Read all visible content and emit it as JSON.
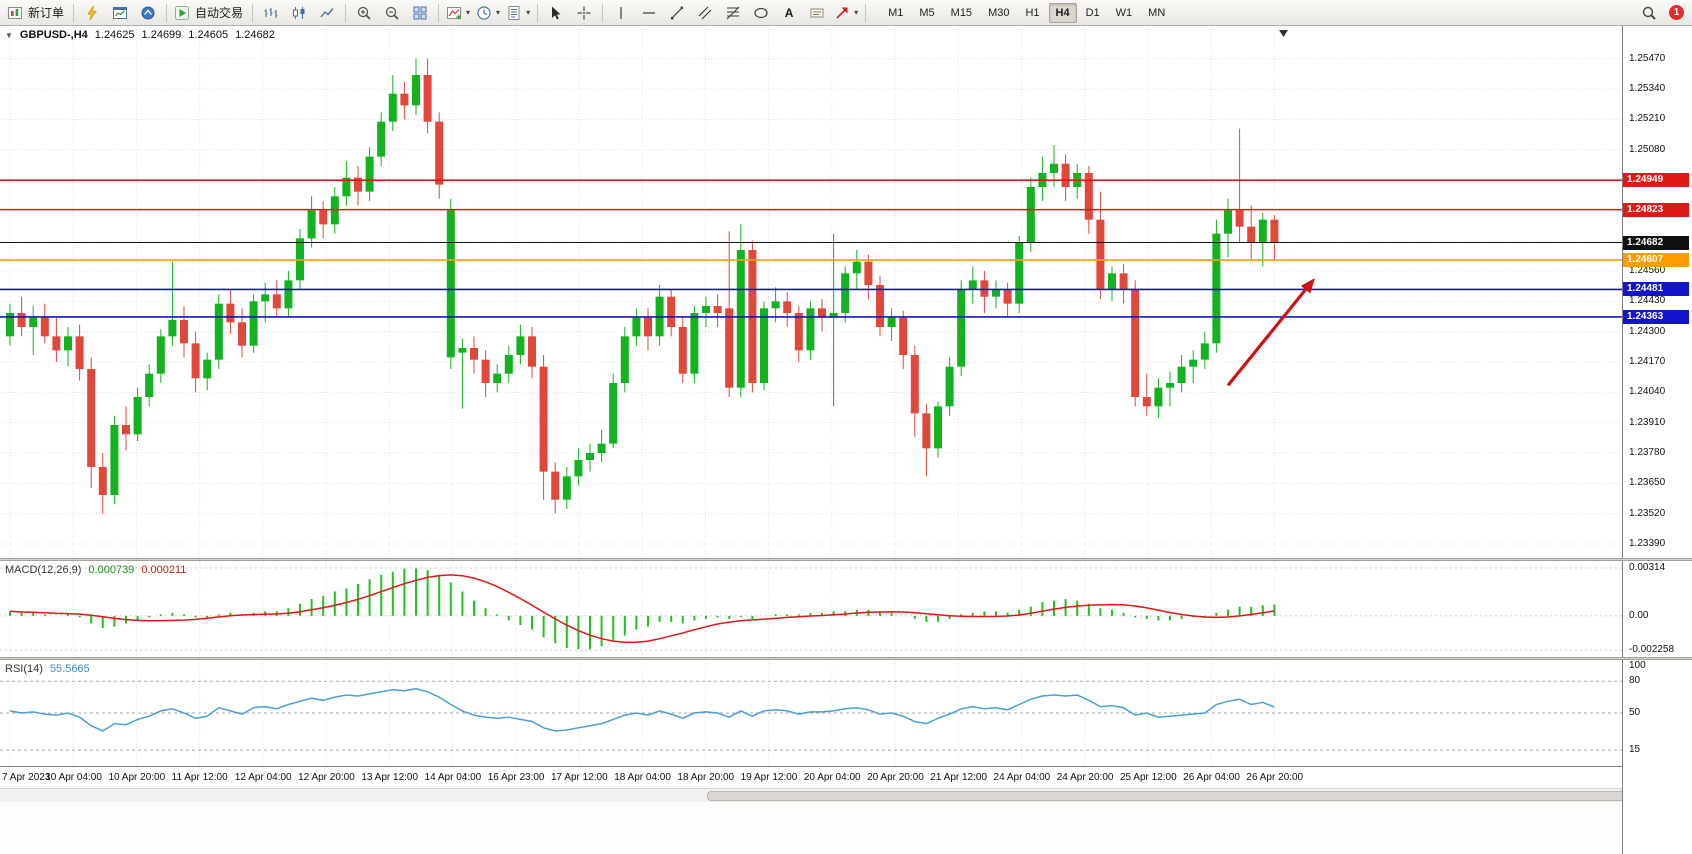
{
  "toolbar": {
    "groups": [
      [
        {
          "name": "new-order-button",
          "icon": "new-order",
          "label": "新订单"
        }
      ],
      [
        {
          "name": "quick-trade-button",
          "icon": "lightning"
        },
        {
          "name": "chart-window-button",
          "icon": "chart-window"
        },
        {
          "name": "quotes-button",
          "icon": "quotes"
        }
      ],
      [
        {
          "name": "auto-trading-button",
          "icon": "auto-trading",
          "label": "自动交易"
        }
      ],
      [
        {
          "name": "bar-chart-button",
          "icon": "bars-chart"
        },
        {
          "name": "candle-chart-button",
          "icon": "candles-chart"
        },
        {
          "name": "line-chart-button",
          "icon": "line-chart"
        }
      ],
      [
        {
          "name": "zoom-in-button",
          "icon": "zoom-in"
        },
        {
          "name": "zoom-out-button",
          "icon": "zoom-out"
        },
        {
          "name": "tile-windows-button",
          "icon": "tile-windows"
        }
      ],
      [
        {
          "name": "indicators-button",
          "icon": "indicators",
          "caret": true
        },
        {
          "name": "periods-button",
          "icon": "clock",
          "caret": true
        },
        {
          "name": "templates-button",
          "icon": "template",
          "caret": true
        }
      ],
      [
        {
          "name": "cursor-button",
          "icon": "cursor"
        },
        {
          "name": "crosshair-button",
          "icon": "crosshair"
        }
      ],
      [
        {
          "name": "vertical-line-button",
          "icon": "vline"
        },
        {
          "name": "horizontal-line-button",
          "icon": "hline"
        },
        {
          "name": "trendline-button",
          "icon": "trendline"
        },
        {
          "name": "channel-button",
          "icon": "channel"
        },
        {
          "name": "fibonacci-button",
          "icon": "fibonacci"
        },
        {
          "name": "shapes-button",
          "icon": "shapes"
        },
        {
          "name": "text-tool-button",
          "label": "A"
        },
        {
          "name": "label-tool-button",
          "icon": "label"
        },
        {
          "name": "arrows-button",
          "icon": "arrow-tools",
          "caret": true
        }
      ]
    ],
    "timeframes": [
      "M1",
      "M5",
      "M15",
      "M30",
      "H1",
      "H4",
      "D1",
      "W1",
      "MN"
    ],
    "active_timeframe": "H4",
    "right": {
      "notification_count": "1"
    }
  },
  "colors": {
    "up": "#12b31e",
    "down": "#e0483c",
    "grid": "#e3e3e3",
    "arrow": "#cc1212",
    "macd_hist": "#22c122",
    "macd_signal": "#e81414",
    "rsi": "#4a9fd8"
  },
  "chart_data": {
    "type": "candlestick",
    "symbol_label": "GBPUSD-,H4",
    "open": "1.24625",
    "high": "1.24699",
    "low": "1.24605",
    "close": "1.24682",
    "price_min": 1.2333,
    "price_max": 1.2561,
    "price_axis_ticks": [
      "1.25470",
      "1.25340",
      "1.25210",
      "1.25080",
      "1.24950",
      "1.24820",
      "1.24690",
      "1.24560",
      "1.24430",
      "1.24300",
      "1.24170",
      "1.24040",
      "1.23910",
      "1.23780",
      "1.23650",
      "1.23520",
      "1.23390"
    ],
    "price_lines": [
      {
        "price": 1.24949,
        "label": "1.24949",
        "color": "#e21717"
      },
      {
        "price": 1.24823,
        "label": "1.24823",
        "color": "#e21717"
      },
      {
        "price": 1.24682,
        "label": "1.24682",
        "color": "#101010"
      },
      {
        "price": 1.24607,
        "label": "1.24607",
        "color": "#ff9d00"
      },
      {
        "price": 1.24481,
        "label": "1.24481",
        "color": "#1414cc"
      },
      {
        "price": 1.24363,
        "label": "1.24363",
        "color": "#1414cc"
      }
    ],
    "arrow": {
      "from_index": 105,
      "from_price": 1.2407,
      "to_index": 112.5,
      "to_price": 1.2453
    },
    "candles": [
      [
        1.2428,
        1.2442,
        1.2424,
        1.2438
      ],
      [
        1.2438,
        1.2445,
        1.2428,
        1.2432
      ],
      [
        1.2432,
        1.2441,
        1.242,
        1.2436
      ],
      [
        1.2436,
        1.2442,
        1.2425,
        1.2428
      ],
      [
        1.2428,
        1.2436,
        1.2417,
        1.2422
      ],
      [
        1.2422,
        1.2432,
        1.2415,
        1.2428
      ],
      [
        1.2428,
        1.2433,
        1.2409,
        1.2414
      ],
      [
        1.2414,
        1.2419,
        1.2363,
        1.2372
      ],
      [
        1.2372,
        1.2378,
        1.2352,
        1.236
      ],
      [
        1.236,
        1.2394,
        1.2356,
        1.239
      ],
      [
        1.239,
        1.2398,
        1.2379,
        1.2386
      ],
      [
        1.2386,
        1.2406,
        1.2383,
        1.2402
      ],
      [
        1.2402,
        1.2416,
        1.2398,
        1.2412
      ],
      [
        1.2412,
        1.2431,
        1.2408,
        1.2428
      ],
      [
        1.2428,
        1.246,
        1.2424,
        1.2435
      ],
      [
        1.2435,
        1.2441,
        1.2419,
        1.2425
      ],
      [
        1.2425,
        1.243,
        1.2404,
        1.241
      ],
      [
        1.241,
        1.2421,
        1.2405,
        1.2418
      ],
      [
        1.2418,
        1.2446,
        1.2414,
        1.2442
      ],
      [
        1.2442,
        1.2448,
        1.2429,
        1.2434
      ],
      [
        1.2434,
        1.244,
        1.2419,
        1.2424
      ],
      [
        1.2424,
        1.2446,
        1.2421,
        1.2443
      ],
      [
        1.2443,
        1.2451,
        1.2434,
        1.2446
      ],
      [
        1.2446,
        1.2452,
        1.2436,
        1.244
      ],
      [
        1.244,
        1.2456,
        1.2436,
        1.2452
      ],
      [
        1.2452,
        1.2474,
        1.2448,
        1.247
      ],
      [
        1.247,
        1.2488,
        1.2466,
        1.2482
      ],
      [
        1.2482,
        1.2486,
        1.247,
        1.2476
      ],
      [
        1.2476,
        1.2492,
        1.2472,
        1.2488
      ],
      [
        1.2488,
        1.2503,
        1.2484,
        1.2496
      ],
      [
        1.2496,
        1.2501,
        1.2484,
        1.249
      ],
      [
        1.249,
        1.2509,
        1.2486,
        1.2505
      ],
      [
        1.2505,
        1.2524,
        1.2501,
        1.252
      ],
      [
        1.252,
        1.254,
        1.2516,
        1.2532
      ],
      [
        1.2532,
        1.2537,
        1.2521,
        1.2527
      ],
      [
        1.2527,
        1.2547,
        1.2523,
        1.254
      ],
      [
        1.254,
        1.2547,
        1.2515,
        1.252
      ],
      [
        1.252,
        1.2524,
        1.2487,
        1.2493
      ],
      [
        1.2419,
        1.2487,
        1.2414,
        1.2482
      ],
      [
        1.2421,
        1.2427,
        1.2397,
        1.2423
      ],
      [
        1.2423,
        1.2428,
        1.2412,
        1.2418
      ],
      [
        1.2418,
        1.2422,
        1.2402,
        1.2408
      ],
      [
        1.2408,
        1.2416,
        1.2404,
        1.2412
      ],
      [
        1.2412,
        1.2424,
        1.2408,
        1.242
      ],
      [
        1.242,
        1.2433,
        1.2416,
        1.2428
      ],
      [
        1.2428,
        1.2432,
        1.241,
        1.2415
      ],
      [
        1.2415,
        1.242,
        1.2358,
        1.237
      ],
      [
        1.237,
        1.2374,
        1.2352,
        1.2358
      ],
      [
        1.2358,
        1.2372,
        1.2354,
        1.2368
      ],
      [
        1.2368,
        1.238,
        1.2364,
        1.2375
      ],
      [
        1.2375,
        1.2382,
        1.237,
        1.2378
      ],
      [
        1.2378,
        1.2388,
        1.2374,
        1.2382
      ],
      [
        1.2382,
        1.2412,
        1.238,
        1.2408
      ],
      [
        1.2408,
        1.2432,
        1.2404,
        1.2428
      ],
      [
        1.2428,
        1.244,
        1.2424,
        1.2436
      ],
      [
        1.2436,
        1.244,
        1.2422,
        1.2428
      ],
      [
        1.2428,
        1.245,
        1.2424,
        1.2445
      ],
      [
        1.2445,
        1.2448,
        1.2428,
        1.2432
      ],
      [
        1.2432,
        1.2436,
        1.2408,
        1.2412
      ],
      [
        1.2412,
        1.2441,
        1.2408,
        1.2438
      ],
      [
        1.2438,
        1.2445,
        1.2432,
        1.2441
      ],
      [
        1.2441,
        1.2446,
        1.2432,
        1.2438
      ],
      [
        1.244,
        1.2473,
        1.2402,
        1.2406
      ],
      [
        1.2406,
        1.2476,
        1.2402,
        1.2465
      ],
      [
        1.2465,
        1.2469,
        1.2404,
        1.2408
      ],
      [
        1.2408,
        1.2443,
        1.2405,
        1.244
      ],
      [
        1.244,
        1.2449,
        1.2434,
        1.2443
      ],
      [
        1.2443,
        1.2447,
        1.2432,
        1.2438
      ],
      [
        1.2438,
        1.2441,
        1.2417,
        1.2422
      ],
      [
        1.2422,
        1.2443,
        1.2418,
        1.244
      ],
      [
        1.244,
        1.2444,
        1.243,
        1.2436
      ],
      [
        1.2436,
        1.2472,
        1.2398,
        1.2438
      ],
      [
        1.2438,
        1.2458,
        1.2434,
        1.2455
      ],
      [
        1.2455,
        1.2465,
        1.2448,
        1.246
      ],
      [
        1.246,
        1.2463,
        1.2444,
        1.245
      ],
      [
        1.245,
        1.2454,
        1.2428,
        1.2432
      ],
      [
        1.2432,
        1.244,
        1.2426,
        1.2436
      ],
      [
        1.2436,
        1.2439,
        1.2414,
        1.242
      ],
      [
        1.242,
        1.2424,
        1.2385,
        1.2395
      ],
      [
        1.2395,
        1.2399,
        1.2368,
        1.238
      ],
      [
        1.238,
        1.24,
        1.2376,
        1.2398
      ],
      [
        1.2398,
        1.2419,
        1.2394,
        1.2415
      ],
      [
        1.2415,
        1.2452,
        1.2411,
        1.2448
      ],
      [
        1.2448,
        1.2458,
        1.2442,
        1.2452
      ],
      [
        1.2452,
        1.2456,
        1.2438,
        1.2445
      ],
      [
        1.2445,
        1.2452,
        1.244,
        1.2448
      ],
      [
        1.2448,
        1.2451,
        1.2436,
        1.2442
      ],
      [
        1.2442,
        1.2471,
        1.2438,
        1.2468
      ],
      [
        1.2468,
        1.2496,
        1.2464,
        1.2492
      ],
      [
        1.2492,
        1.2505,
        1.2486,
        1.2498
      ],
      [
        1.2498,
        1.251,
        1.2492,
        1.2502
      ],
      [
        1.2502,
        1.2506,
        1.2486,
        1.2492
      ],
      [
        1.2492,
        1.2502,
        1.2487,
        1.2498
      ],
      [
        1.2498,
        1.2501,
        1.2472,
        1.2478
      ],
      [
        1.2478,
        1.249,
        1.2444,
        1.2448
      ],
      [
        1.2448,
        1.2458,
        1.2443,
        1.2455
      ],
      [
        1.2455,
        1.2459,
        1.2442,
        1.2448
      ],
      [
        1.2448,
        1.2452,
        1.2398,
        1.2402
      ],
      [
        1.2402,
        1.2412,
        1.2394,
        1.2398
      ],
      [
        1.2398,
        1.241,
        1.2393,
        1.2406
      ],
      [
        1.2406,
        1.2413,
        1.2398,
        1.2408
      ],
      [
        1.2408,
        1.242,
        1.2404,
        1.2415
      ],
      [
        1.2415,
        1.2422,
        1.2408,
        1.2418
      ],
      [
        1.2418,
        1.243,
        1.2414,
        1.2425
      ],
      [
        1.2425,
        1.2478,
        1.2421,
        1.2472
      ],
      [
        1.2472,
        1.2487,
        1.2462,
        1.2482
      ],
      [
        1.2482,
        1.2517,
        1.2468,
        1.2475
      ],
      [
        1.2475,
        1.2484,
        1.2461,
        1.2468
      ],
      [
        1.2468,
        1.2481,
        1.2458,
        1.2478
      ],
      [
        1.2478,
        1.248,
        1.2461,
        1.2468
      ]
    ],
    "macd": {
      "label": "MACD(12,26,9)",
      "value_main": "0.000739",
      "value_signal": "0.000211",
      "max": 0.0036,
      "min": -0.0027,
      "ticks": [
        {
          "label": "0.00314",
          "value": 0.00314
        },
        {
          "label": "0.00",
          "value": 0
        },
        {
          "label": "-0.002258",
          "value": -0.002258
        }
      ],
      "hist": [
        0.0003,
        0.0002,
        0.0002,
        0.0001,
        0.0,
        0.0001,
        -0.0001,
        -0.0005,
        -0.0008,
        -0.0007,
        -0.0005,
        -0.0003,
        -0.0001,
        0.0001,
        0.0002,
        0.0001,
        -0.0001,
        -0.0001,
        0.0001,
        0.0002,
        0.0001,
        0.0002,
        0.0003,
        0.0003,
        0.0005,
        0.0008,
        0.0011,
        0.0013,
        0.0016,
        0.0018,
        0.0021,
        0.0024,
        0.0027,
        0.0029,
        0.0031,
        0.0031,
        0.003,
        0.0027,
        0.0022,
        0.0016,
        0.001,
        0.0005,
        0.0001,
        -0.0003,
        -0.0006,
        -0.0009,
        -0.0014,
        -0.0018,
        -0.0021,
        -0.0022,
        -0.0022,
        -0.002,
        -0.0017,
        -0.0013,
        -0.0009,
        -0.0007,
        -0.0004,
        -0.0004,
        -0.0005,
        -0.0003,
        -0.0002,
        -0.0001,
        -0.0002,
        -0.0001,
        -0.0002,
        0.0,
        0.0001,
        0.0001,
        0.0001,
        0.0002,
        0.0002,
        0.0003,
        0.0003,
        0.0004,
        0.0004,
        0.0003,
        0.0002,
        0.0,
        -0.0002,
        -0.0004,
        -0.0004,
        -0.0002,
        0.0001,
        0.0002,
        0.0003,
        0.0003,
        0.0002,
        0.0004,
        0.0006,
        0.0009,
        0.001,
        0.0011,
        0.001,
        0.0008,
        0.0005,
        0.0004,
        0.0002,
        -0.0001,
        -0.0002,
        -0.0003,
        -0.0003,
        -0.0002,
        -0.0001,
        -0.0001,
        0.0002,
        0.0004,
        0.0006,
        0.0006,
        0.0007,
        0.00074
      ]
    },
    "rsi": {
      "label": "RSI(14)",
      "value": "55.5665",
      "ticks": [
        {
          "label": "100",
          "value": 100
        },
        {
          "label": "80",
          "value": 80
        },
        {
          "label": "50",
          "value": 50
        },
        {
          "label": "15",
          "value": 15
        }
      ],
      "levels": [
        80,
        50,
        15
      ],
      "values": [
        52,
        50,
        51,
        49,
        48,
        50,
        46,
        38,
        33,
        40,
        39,
        44,
        47,
        52,
        54,
        50,
        45,
        47,
        55,
        52,
        49,
        55,
        56,
        54,
        58,
        61,
        64,
        62,
        65,
        67,
        66,
        68,
        70,
        72,
        71,
        73,
        70,
        65,
        58,
        52,
        48,
        46,
        45,
        46,
        44,
        42,
        36,
        33,
        34,
        36,
        38,
        40,
        44,
        48,
        50,
        48,
        52,
        49,
        45,
        50,
        51,
        50,
        46,
        52,
        47,
        52,
        53,
        52,
        49,
        51,
        51,
        52,
        54,
        55,
        53,
        49,
        50,
        47,
        42,
        40,
        45,
        49,
        54,
        56,
        54,
        55,
        53,
        58,
        63,
        66,
        67,
        66,
        67,
        62,
        56,
        57,
        55,
        48,
        50,
        46,
        47,
        48,
        49,
        50,
        58,
        61,
        63,
        58,
        60,
        55.57
      ]
    },
    "time_labels": [
      "7 Apr 2023",
      "10 Apr 04:00",
      "10 Apr 20:00",
      "11 Apr 12:00",
      "12 Apr 04:00",
      "12 Apr 20:00",
      "13 Apr 12:00",
      "14 Apr 04:00",
      "16 Apr 23:00",
      "17 Apr 12:00",
      "18 Apr 04:00",
      "18 Apr 20:00",
      "19 Apr 12:00",
      "20 Apr 04:00",
      "20 Apr 20:00",
      "21 Apr 12:00",
      "24 Apr 04:00",
      "24 Apr 20:00",
      "25 Apr 12:00",
      "26 Apr 04:00",
      "26 Apr 20:00"
    ]
  }
}
